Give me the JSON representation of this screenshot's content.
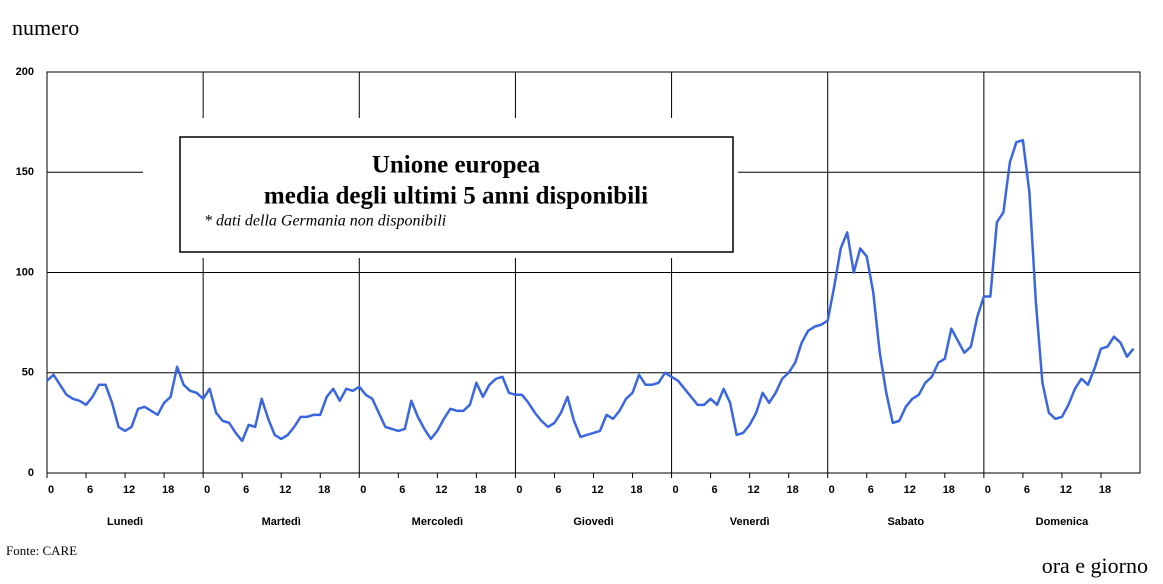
{
  "chart_data": {
    "type": "line",
    "title": "Unione europea",
    "subtitle": "media degli ultimi 5 anni disponibili",
    "note": "* dati della Germania non disponibili",
    "y_label": "numero",
    "x_label": "ora e giorno",
    "source": "Fonte: CARE",
    "days": [
      "Lunedì",
      "Martedì",
      "Mercoledì",
      "Giovedì",
      "Venerdì",
      "Sabato",
      "Domenica"
    ],
    "x": [
      0,
      1,
      2,
      3,
      4,
      5,
      6,
      7,
      8,
      9,
      10,
      11,
      12,
      13,
      14,
      15,
      16,
      17,
      18,
      19,
      20,
      21,
      22,
      23,
      24,
      25,
      26,
      27,
      28,
      29,
      30,
      31,
      32,
      33,
      34,
      35,
      36,
      37,
      38,
      39,
      40,
      41,
      42,
      43,
      44,
      45,
      46,
      47,
      48,
      49,
      50,
      51,
      52,
      53,
      54,
      55,
      56,
      57,
      58,
      59,
      60,
      61,
      62,
      63,
      64,
      65,
      66,
      67,
      68,
      69,
      70,
      71,
      72,
      73,
      74,
      75,
      76,
      77,
      78,
      79,
      80,
      81,
      82,
      83,
      84,
      85,
      86,
      87,
      88,
      89,
      90,
      91,
      92,
      93,
      94,
      95,
      96,
      97,
      98,
      99,
      100,
      101,
      102,
      103,
      104,
      105,
      106,
      107,
      108,
      109,
      110,
      111,
      112,
      113,
      114,
      115,
      116,
      117,
      118,
      119,
      120,
      121,
      122,
      123,
      124,
      125,
      126,
      127,
      128,
      129,
      130,
      131,
      132,
      133,
      134,
      135,
      136,
      137,
      138,
      139,
      140,
      141,
      142,
      143,
      144,
      145,
      146,
      147,
      148,
      149,
      150,
      151,
      152,
      153,
      154,
      155,
      156,
      157,
      158,
      159,
      160,
      161,
      162,
      163,
      164,
      165,
      166,
      167
    ],
    "series": [
      {
        "color": "#3a66e0",
        "values": [
          46,
          49,
          44,
          39,
          37,
          36,
          34,
          38,
          44,
          44,
          35,
          23,
          21,
          23,
          32,
          33,
          31,
          29,
          35,
          38,
          53,
          44,
          41,
          40,
          37,
          42,
          30,
          26,
          25,
          20,
          16,
          24,
          23,
          37,
          27,
          19,
          17,
          19,
          23,
          28,
          28,
          29,
          29,
          38,
          42,
          36,
          42,
          41,
          43,
          39,
          37,
          30,
          23,
          22,
          21,
          22,
          36,
          28,
          22,
          17,
          21,
          27,
          32,
          31,
          31,
          34,
          45,
          38,
          44,
          47,
          48,
          40,
          39,
          39,
          35,
          30,
          26,
          23,
          25,
          30,
          38,
          26,
          18,
          19,
          20,
          21,
          29,
          27,
          31,
          37,
          40,
          49,
          44,
          44,
          45,
          50,
          48,
          46,
          42,
          38,
          34,
          34,
          37,
          34,
          42,
          35,
          19,
          20,
          24,
          30,
          40,
          35,
          40,
          47,
          50,
          55,
          65,
          71,
          73,
          74,
          76,
          93,
          112,
          120,
          100,
          112,
          108,
          90,
          60,
          40,
          25,
          26,
          33,
          37,
          39,
          45,
          48,
          55,
          57,
          72,
          66,
          60,
          63,
          78,
          88,
          88,
          125,
          130,
          155,
          165,
          166,
          140,
          85,
          45,
          30,
          27,
          28,
          34,
          42,
          47,
          44,
          52,
          62,
          63,
          68,
          65,
          58,
          62
        ]
      }
    ],
    "xlim": [
      0,
      168
    ],
    "ylim": [
      0,
      200
    ],
    "yticks": [
      0,
      50,
      100,
      150,
      200
    ],
    "xticks": [
      0,
      6,
      12,
      18,
      {
        "value": 24,
        "label": "0"
      },
      {
        "value": 30,
        "label": "6"
      },
      {
        "value": 36,
        "label": "12"
      },
      {
        "value": 42,
        "label": "18"
      },
      {
        "value": 48,
        "label": "0"
      },
      {
        "value": 54,
        "label": "6"
      },
      {
        "value": 60,
        "label": "12"
      },
      {
        "value": 66,
        "label": "18"
      },
      {
        "value": 72,
        "label": "0"
      },
      {
        "value": 78,
        "label": "6"
      },
      {
        "value": 84,
        "label": "12"
      },
      {
        "value": 90,
        "label": "18"
      },
      {
        "value": 96,
        "label": "0"
      },
      {
        "value": 102,
        "label": "6"
      },
      {
        "value": 108,
        "label": "12"
      },
      {
        "value": 114,
        "label": "18"
      },
      {
        "value": 120,
        "label": "0"
      },
      {
        "value": 126,
        "label": "6"
      },
      {
        "value": 132,
        "label": "12"
      },
      {
        "value": 138,
        "label": "18"
      },
      {
        "value": 144,
        "label": "0"
      },
      {
        "value": 150,
        "label": "6"
      },
      {
        "value": 156,
        "label": "12"
      },
      {
        "value": 162,
        "label": "18"
      }
    ],
    "grid": true
  }
}
